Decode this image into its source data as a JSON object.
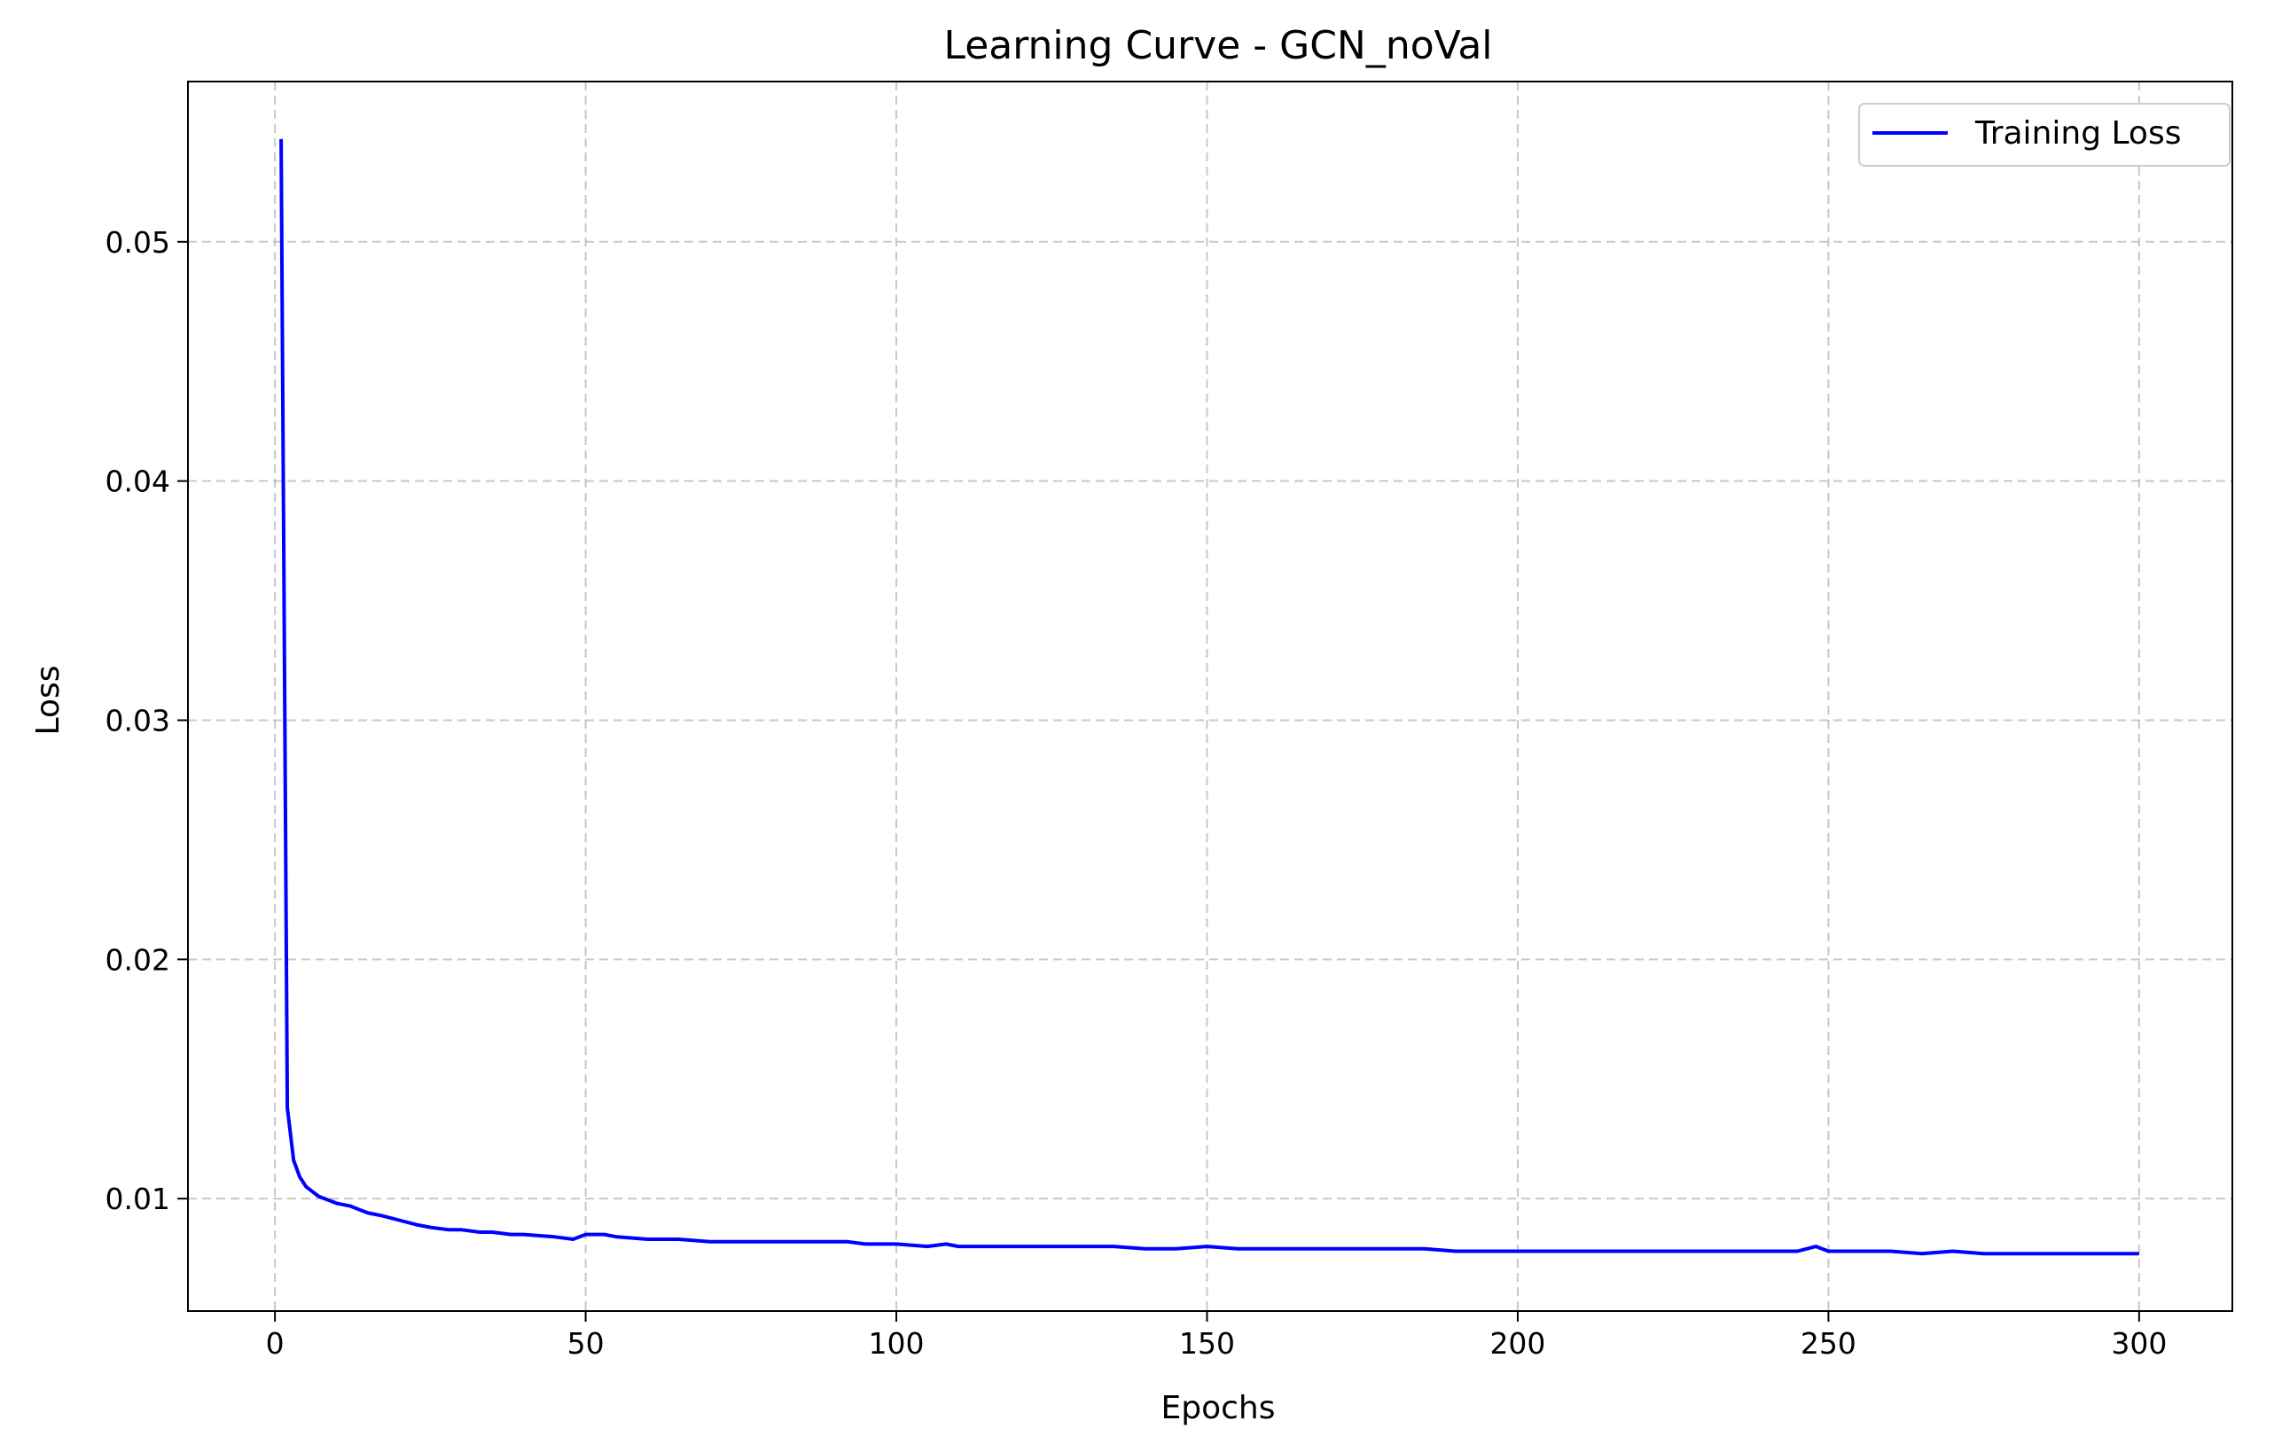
{
  "chart_data": {
    "type": "line",
    "title": "Learning Curve - GCN_noVal",
    "xlabel": "Epochs",
    "ylabel": "Loss",
    "xlim": [
      -14,
      315
    ],
    "ylim": [
      0.0053,
      0.0567
    ],
    "xticks": [
      0,
      50,
      100,
      150,
      200,
      250,
      300
    ],
    "xtick_labels": [
      "0",
      "50",
      "100",
      "150",
      "200",
      "250",
      "300"
    ],
    "yticks": [
      0.01,
      0.02,
      0.03,
      0.04,
      0.05
    ],
    "ytick_labels": [
      "0.01",
      "0.02",
      "0.03",
      "0.04",
      "0.05"
    ],
    "grid": true,
    "legend_position": "top-right",
    "series": [
      {
        "name": "Training Loss",
        "color": "#0000ff",
        "x": [
          1,
          2,
          3,
          4,
          5,
          6,
          7,
          8,
          9,
          10,
          12,
          14,
          15,
          17,
          20,
          23,
          25,
          28,
          30,
          33,
          35,
          38,
          40,
          45,
          48,
          50,
          53,
          55,
          60,
          65,
          70,
          75,
          80,
          85,
          88,
          90,
          92,
          95,
          100,
          105,
          108,
          110,
          115,
          120,
          125,
          130,
          135,
          140,
          145,
          150,
          155,
          160,
          165,
          170,
          175,
          180,
          185,
          190,
          195,
          200,
          205,
          210,
          215,
          220,
          225,
          230,
          235,
          240,
          245,
          248,
          250,
          255,
          260,
          265,
          270,
          275,
          280,
          285,
          290,
          295,
          300
        ],
        "values": [
          0.0543,
          0.0138,
          0.0116,
          0.0109,
          0.0105,
          0.0103,
          0.0101,
          0.01,
          0.0099,
          0.0098,
          0.0097,
          0.0095,
          0.0094,
          0.0093,
          0.0091,
          0.0089,
          0.0088,
          0.0087,
          0.0087,
          0.0086,
          0.0086,
          0.0085,
          0.0085,
          0.0084,
          0.0083,
          0.0085,
          0.0085,
          0.0084,
          0.0083,
          0.0083,
          0.0082,
          0.0082,
          0.0082,
          0.0082,
          0.0082,
          0.0082,
          0.0082,
          0.0081,
          0.0081,
          0.008,
          0.0081,
          0.008,
          0.008,
          0.008,
          0.008,
          0.008,
          0.008,
          0.0079,
          0.0079,
          0.008,
          0.0079,
          0.0079,
          0.0079,
          0.0079,
          0.0079,
          0.0079,
          0.0079,
          0.0078,
          0.0078,
          0.0078,
          0.0078,
          0.0078,
          0.0078,
          0.0078,
          0.0078,
          0.0078,
          0.0078,
          0.0078,
          0.0078,
          0.008,
          0.0078,
          0.0078,
          0.0078,
          0.0077,
          0.0078,
          0.0077,
          0.0077,
          0.0077,
          0.0077,
          0.0077,
          0.0077
        ]
      }
    ]
  }
}
